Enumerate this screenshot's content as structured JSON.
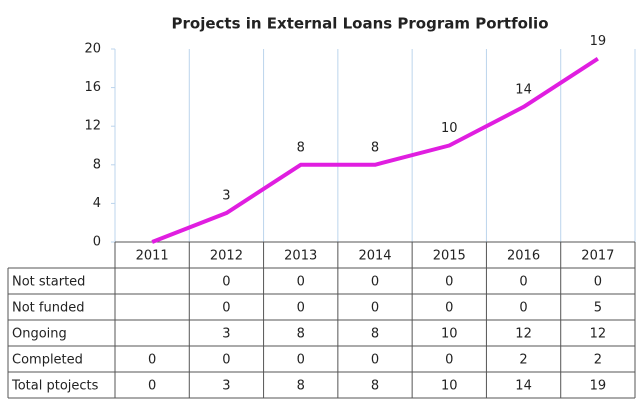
{
  "chart_data": {
    "type": "line",
    "title": "Projects in External Loans Program Portfolio",
    "categories": [
      "2011",
      "2012",
      "2013",
      "2014",
      "2015",
      "2016",
      "2017"
    ],
    "series": [
      {
        "name": "Total ptojects",
        "color": "#e01ee0",
        "values": [
          0,
          3,
          8,
          8,
          10,
          14,
          19
        ]
      }
    ],
    "ylim": [
      0,
      20
    ],
    "yticks": [
      0,
      4,
      8,
      12,
      16,
      20
    ],
    "grid": true,
    "table": {
      "rows": [
        {
          "name": "Not started",
          "values": [
            null,
            0,
            0,
            0,
            0,
            0,
            0
          ]
        },
        {
          "name": "Not funded",
          "values": [
            null,
            0,
            0,
            0,
            0,
            0,
            5
          ]
        },
        {
          "name": "Ongoing",
          "values": [
            null,
            3,
            8,
            8,
            10,
            12,
            12
          ]
        },
        {
          "name": "Completed",
          "values": [
            0,
            0,
            0,
            0,
            0,
            2,
            2
          ]
        },
        {
          "name": "Total ptojects",
          "values": [
            0,
            3,
            8,
            8,
            10,
            14,
            19
          ]
        }
      ]
    }
  }
}
